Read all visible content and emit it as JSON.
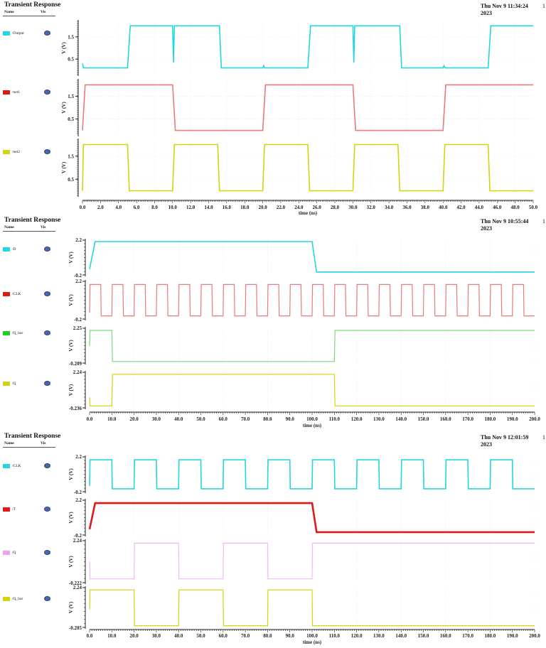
{
  "panels": [
    {
      "title": "Transient Response",
      "header": {
        "name": "Name",
        "vis": "Vis"
      },
      "date": "Thu Nov 9 11:34:24",
      "year": "2023",
      "page": "1",
      "signals": [
        {
          "label": "/Output",
          "color": "#22d6e0"
        },
        {
          "label": "/net1",
          "color": "#e01818"
        },
        {
          "label": "/net2",
          "color": "#d4d40c"
        }
      ],
      "xlabel": "time (ns)"
    },
    {
      "title": "Transient Response",
      "header": {
        "name": "Name",
        "vis": "Vis"
      },
      "date": "Thu Nov 9 10:55:44",
      "year": "2023",
      "page": "1",
      "signals": [
        {
          "label": "/D",
          "color": "#22d6e0"
        },
        {
          "label": "/CLK",
          "color": "#e01818"
        },
        {
          "label": "/Q_bar",
          "color": "#22cc22"
        },
        {
          "label": "/Q",
          "color": "#d4d40c"
        }
      ],
      "xlabel": "time (ns)"
    },
    {
      "title": "Transient Response",
      "header": {
        "name": "Name",
        "vis": "Vis"
      },
      "date": "Thu Nov 9 12:01:59",
      "year": "2023",
      "page": "1",
      "signals": [
        {
          "label": "/CLK",
          "color": "#22d6e0"
        },
        {
          "label": "/T",
          "color": "#e01818"
        },
        {
          "label": "/Q",
          "color": "#f0a0f0"
        },
        {
          "label": "/Q_bar",
          "color": "#d4d40c"
        }
      ],
      "xlabel": "time (ns)"
    }
  ],
  "chart_data": [
    {
      "type": "line",
      "title": "Transient Response",
      "xlabel": "time (ns)",
      "ylabel": "V (V)",
      "xlim": [
        0,
        50
      ],
      "xticks": [
        "0.0",
        "2.0",
        "4.0",
        "6.0",
        "8.0",
        "10.0",
        "12.0",
        "14.0",
        "16.0",
        "18.0",
        "20.0",
        "22.0",
        "24.0",
        "26.0",
        "28.0",
        "30.0",
        "32.0",
        "34.0",
        "36.0",
        "38.0",
        "40.0",
        "42.0",
        "44.0",
        "46.0",
        "48.0",
        "50.0"
      ],
      "series": [
        {
          "name": "/Output",
          "color": "#22d6e0",
          "yticks": [
            "1.5",
            "0.5"
          ],
          "ylim": [
            -0.2,
            2.2
          ],
          "x": [
            0,
            0.1,
            0.2,
            5,
            5.3,
            10,
            10.1,
            10.2,
            15.2,
            15.4,
            20,
            20.1,
            20.2,
            25,
            25.3,
            30,
            30.1,
            30.2,
            35.2,
            35.4,
            40,
            40.1,
            40.2,
            45,
            45.3,
            50
          ],
          "y": [
            0.3,
            0.1,
            0.1,
            0.1,
            2.0,
            2.0,
            0.35,
            2.0,
            2.0,
            0.1,
            0.1,
            0.2,
            0.1,
            0.1,
            2.0,
            2.0,
            0.35,
            2.0,
            2.0,
            0.1,
            0.1,
            0.2,
            0.1,
            0.1,
            2.0,
            2.0
          ]
        },
        {
          "name": "/net1",
          "color": "#e01818",
          "yticks": [
            "1.5",
            "0.5"
          ],
          "ylim": [
            -0.2,
            2.2
          ],
          "x": [
            0,
            0.3,
            10,
            10.3,
            20,
            20.3,
            30,
            30.3,
            40,
            40.3,
            50
          ],
          "y": [
            0.0,
            2.0,
            2.0,
            0.0,
            0.0,
            2.0,
            2.0,
            0.0,
            0.0,
            2.0,
            2.0
          ]
        },
        {
          "name": "/net2",
          "color": "#d4d40c",
          "yticks": [
            "1.5",
            "0.5"
          ],
          "ylim": [
            -0.2,
            2.2
          ],
          "x": [
            0,
            0.1,
            5,
            5.2,
            10,
            10.2,
            15,
            15.2,
            20,
            20.2,
            25,
            25.2,
            30,
            30.2,
            35,
            35.2,
            40,
            40.2,
            45,
            45.2,
            50
          ],
          "y": [
            0.0,
            2.0,
            2.0,
            0.0,
            0.0,
            2.0,
            2.0,
            0.0,
            0.0,
            2.0,
            2.0,
            0.0,
            0.0,
            2.0,
            2.0,
            0.0,
            0.0,
            2.0,
            2.0,
            0.0,
            0.0
          ]
        }
      ]
    },
    {
      "type": "line",
      "title": "Transient Response",
      "xlabel": "time (ns)",
      "ylabel": "V (V)",
      "xlim": [
        0,
        200
      ],
      "xticks": [
        "0.0",
        "10.0",
        "20.0",
        "30.0",
        "40.0",
        "50.0",
        "60.0",
        "70.0",
        "80.0",
        "90.0",
        "100.0",
        "110.0",
        "120.0",
        "130.0",
        "140.0",
        "150.0",
        "160.0",
        "170.0",
        "180.0",
        "190.0",
        "200.0"
      ],
      "series": [
        {
          "name": "/D",
          "color": "#22d6e0",
          "yticks": [
            "2.2",
            "-0.2"
          ],
          "ylim": [
            -0.2,
            2.2
          ],
          "x": [
            0,
            2.5,
            100,
            102,
            200
          ],
          "y": [
            0.2,
            2.1,
            2.1,
            0.0,
            0.0
          ]
        },
        {
          "name": "/CLK",
          "color": "#e01818",
          "yticks": [
            "2.2",
            "-0.2"
          ],
          "ylim": [
            -0.2,
            2.2
          ],
          "period": 10,
          "duty": 0.5,
          "high": 2.0,
          "low": 0.0
        },
        {
          "name": "/Q_bar",
          "color": "#22cc22",
          "yticks": [
            "2.25",
            "-0.209"
          ],
          "ylim": [
            -0.209,
            2.25
          ],
          "x": [
            0,
            0.2,
            10,
            10.3,
            110,
            110.3,
            200
          ],
          "y": [
            1.0,
            2.1,
            2.1,
            -0.1,
            -0.1,
            2.1,
            2.1
          ]
        },
        {
          "name": "/Q",
          "color": "#d4d40c",
          "yticks": [
            "2.24",
            "-0.236"
          ],
          "ylim": [
            -0.236,
            2.24
          ],
          "x": [
            0,
            0.2,
            10,
            10.3,
            110,
            110.3,
            200
          ],
          "y": [
            0.5,
            -0.1,
            -0.1,
            2.1,
            2.1,
            -0.1,
            -0.1
          ]
        }
      ]
    },
    {
      "type": "line",
      "title": "Transient Response",
      "xlabel": "time (ns)",
      "ylabel": "V (V)",
      "xlim": [
        0,
        200
      ],
      "xticks": [
        "0.0",
        "10.0",
        "20.0",
        "30.0",
        "40.0",
        "50.0",
        "60.0",
        "70.0",
        "80.0",
        "90.0",
        "100.0",
        "110.0",
        "120.0",
        "130.0",
        "140.0",
        "150.0",
        "160.0",
        "170.0",
        "180.0",
        "190.0",
        "200.0"
      ],
      "series": [
        {
          "name": "/CLK",
          "color": "#22d6e0",
          "yticks": [
            "2.2",
            "-0.2"
          ],
          "ylim": [
            -0.2,
            2.2
          ],
          "period": 20,
          "duty": 0.5,
          "high": 2.0,
          "low": 0.0
        },
        {
          "name": "/T",
          "color": "#e01818",
          "yticks": [
            "2.2",
            "-0.2"
          ],
          "ylim": [
            -0.2,
            2.2
          ],
          "x": [
            0,
            2.5,
            100,
            102,
            200
          ],
          "y": [
            0.2,
            2.0,
            2.0,
            0.0,
            0.0
          ]
        },
        {
          "name": "/Q",
          "color": "#f0a0f0",
          "yticks": [
            "2.24",
            "-0.222"
          ],
          "ylim": [
            -0.222,
            2.24
          ],
          "x": [
            0,
            0.2,
            20,
            20.2,
            40,
            40.2,
            60,
            60.2,
            80,
            80.2,
            100,
            100.2,
            200
          ],
          "y": [
            1.0,
            0.0,
            0.0,
            2.1,
            2.1,
            0.0,
            0.0,
            2.1,
            2.1,
            0.0,
            0.0,
            2.1,
            2.1
          ]
        },
        {
          "name": "/Q_bar",
          "color": "#d4d40c",
          "yticks": [
            "2.24",
            "-0.205"
          ],
          "ylim": [
            -0.205,
            2.24
          ],
          "x": [
            0,
            0.2,
            20,
            20.2,
            40,
            40.2,
            60,
            60.2,
            80,
            80.2,
            100,
            100.2,
            200
          ],
          "y": [
            0.9,
            2.1,
            2.1,
            -0.1,
            -0.1,
            2.1,
            2.1,
            -0.1,
            -0.1,
            2.1,
            2.1,
            -0.1,
            -0.1
          ]
        }
      ]
    }
  ]
}
